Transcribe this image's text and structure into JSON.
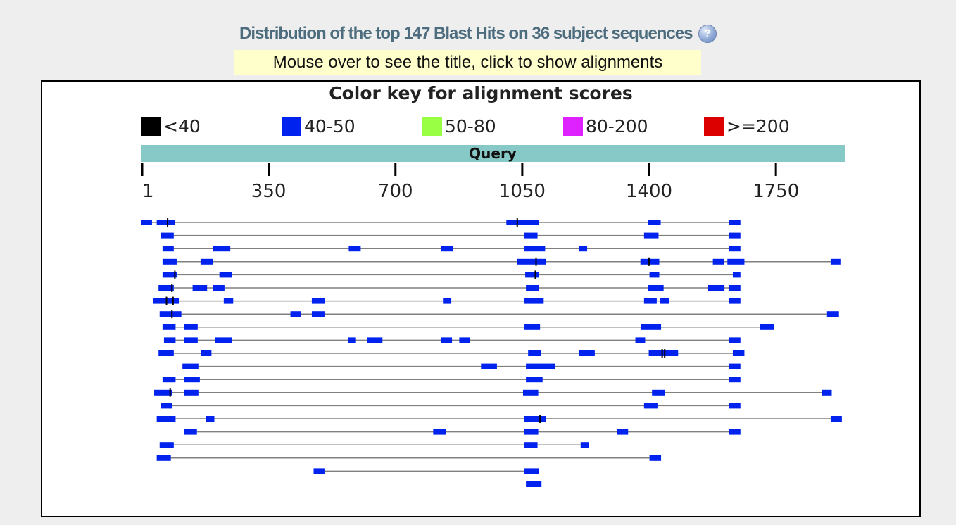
{
  "header": {
    "title": "Distribution of the top 147 Blast Hits on 36 subject sequences",
    "help_icon": "help-question-icon",
    "hint": "Mouse over to see the title, click to show alignments"
  },
  "legend": {
    "title": "Color key for alignment scores",
    "items": [
      {
        "label": "<40",
        "color": "#000000"
      },
      {
        "label": "40-50",
        "color": "#0022ee"
      },
      {
        "label": "50-80",
        "color": "#99ff44"
      },
      {
        "label": "80-200",
        "color": "#dd22ff"
      },
      {
        "label": ">=200",
        "color": "#dd0000"
      }
    ]
  },
  "chart_data": {
    "type": "alignment-map",
    "query_label": "Query",
    "query_length": 1944,
    "xlim": [
      1,
      1944
    ],
    "ticks": [
      1,
      350,
      700,
      1050,
      1400,
      1750
    ],
    "hit_color": "#0022ee",
    "hit_score_range": "40-50",
    "connector_color": "#808080",
    "rows": [
      {
        "segments": [
          [
            1,
            32
          ],
          [
            45,
            95
          ],
          [
            1010,
            1100
          ],
          [
            1400,
            1436
          ],
          [
            1625,
            1656
          ]
        ],
        "marks": [
          75,
          1040
        ]
      },
      {
        "segments": [
          [
            57,
            92
          ],
          [
            1060,
            1096
          ],
          [
            1390,
            1430
          ],
          [
            1625,
            1656
          ]
        ],
        "marks": []
      },
      {
        "segments": [
          [
            61,
            92
          ],
          [
            200,
            248
          ],
          [
            575,
            608
          ],
          [
            830,
            862
          ],
          [
            1060,
            1117
          ],
          [
            1210,
            1233
          ],
          [
            1625,
            1656
          ]
        ],
        "marks": []
      },
      {
        "segments": [
          [
            61,
            100
          ],
          [
            166,
            200
          ],
          [
            1040,
            1120
          ],
          [
            1380,
            1432
          ],
          [
            1580,
            1610
          ],
          [
            1620,
            1667
          ],
          [
            1905,
            1932
          ]
        ],
        "marks": [
          1092,
          1404
        ]
      },
      {
        "segments": [
          [
            61,
            100
          ],
          [
            218,
            252
          ],
          [
            1062,
            1100
          ],
          [
            1405,
            1432
          ],
          [
            1635,
            1656
          ]
        ],
        "marks": [
          95,
          1090
        ]
      },
      {
        "segments": [
          [
            50,
            92
          ],
          [
            144,
            184
          ],
          [
            200,
            232
          ],
          [
            1064,
            1100
          ],
          [
            1400,
            1444
          ],
          [
            1567,
            1612
          ],
          [
            1625,
            1656
          ]
        ],
        "marks": [
          87
        ]
      },
      {
        "segments": [
          [
            34,
            106
          ],
          [
            230,
            256
          ],
          [
            473,
            510
          ],
          [
            835,
            858
          ],
          [
            1060,
            1113
          ],
          [
            1390,
            1425
          ],
          [
            1435,
            1460
          ],
          [
            1625,
            1656
          ]
        ],
        "marks": [
          72,
          90
        ]
      },
      {
        "segments": [
          [
            53,
            113
          ],
          [
            414,
            442
          ],
          [
            473,
            508
          ],
          [
            1895,
            1928
          ]
        ],
        "marks": [
          87
        ]
      },
      {
        "segments": [
          [
            61,
            97
          ],
          [
            120,
            158
          ],
          [
            1060,
            1103
          ],
          [
            1382,
            1437
          ],
          [
            1710,
            1748
          ]
        ],
        "marks": []
      },
      {
        "segments": [
          [
            65,
            97
          ],
          [
            120,
            158
          ],
          [
            205,
            252
          ],
          [
            573,
            593
          ],
          [
            626,
            668
          ],
          [
            830,
            860
          ],
          [
            880,
            910
          ],
          [
            1366,
            1393
          ],
          [
            1625,
            1656
          ]
        ],
        "marks": []
      },
      {
        "segments": [
          [
            50,
            92
          ],
          [
            168,
            196
          ],
          [
            1070,
            1106
          ],
          [
            1210,
            1254
          ],
          [
            1403,
            1484
          ],
          [
            1635,
            1667
          ]
        ],
        "marks": [
          1440,
          1447
        ]
      },
      {
        "segments": [
          [
            116,
            160
          ],
          [
            940,
            984
          ],
          [
            1064,
            1145
          ],
          [
            1625,
            1656
          ]
        ],
        "marks": []
      },
      {
        "segments": [
          [
            61,
            97
          ],
          [
            120,
            164
          ],
          [
            1064,
            1110
          ],
          [
            1625,
            1656
          ]
        ],
        "marks": []
      },
      {
        "segments": [
          [
            38,
            88
          ],
          [
            120,
            160
          ],
          [
            1056,
            1098
          ],
          [
            1412,
            1448
          ],
          [
            1880,
            1908
          ]
        ],
        "marks": [
          82
        ]
      },
      {
        "segments": [
          [
            57,
            88
          ],
          [
            1390,
            1427
          ],
          [
            1625,
            1656
          ]
        ],
        "marks": []
      },
      {
        "segments": [
          [
            45,
            97
          ],
          [
            180,
            204
          ],
          [
            1060,
            1120
          ],
          [
            1905,
            1936
          ]
        ],
        "marks": [
          1103
        ]
      },
      {
        "segments": [
          [
            120,
            156
          ],
          [
            808,
            843
          ],
          [
            1060,
            1098
          ],
          [
            1316,
            1346
          ],
          [
            1625,
            1656
          ]
        ],
        "marks": []
      },
      {
        "segments": [
          [
            53,
            92
          ],
          [
            1060,
            1096
          ],
          [
            1215,
            1237
          ]
        ],
        "marks": []
      },
      {
        "segments": [
          [
            45,
            84
          ],
          [
            1405,
            1437
          ]
        ],
        "marks": []
      },
      {
        "segments": [
          [
            478,
            508
          ],
          [
            1060,
            1100
          ]
        ],
        "marks": []
      },
      {
        "segments": [
          [
            1064,
            1107
          ]
        ],
        "marks": []
      }
    ]
  }
}
